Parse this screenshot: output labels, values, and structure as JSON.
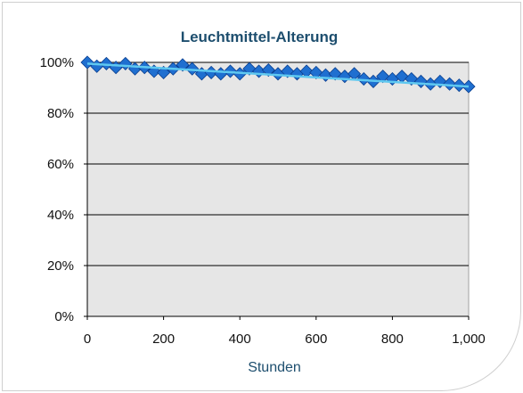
{
  "chart_data": {
    "type": "line",
    "title": "Leuchtmittel-Alterung",
    "xlabel": "Stunden",
    "ylabel": "",
    "xlim": [
      0,
      1000
    ],
    "ylim": [
      0,
      1
    ],
    "x_ticks": [
      0,
      200,
      400,
      600,
      800,
      1000
    ],
    "x_tick_labels": [
      "0",
      "200",
      "400",
      "600",
      "800",
      "1,000"
    ],
    "y_ticks": [
      0,
      0.2,
      0.4,
      0.6,
      0.8,
      1.0
    ],
    "y_tick_labels": [
      "0%",
      "20%",
      "40%",
      "60%",
      "80%",
      "100%"
    ],
    "grid": "horizontal",
    "legend": "none",
    "series": [
      {
        "marker": "diamond",
        "color": "#1f6fd0",
        "x": [
          0,
          25,
          50,
          75,
          100,
          125,
          150,
          175,
          200,
          225,
          250,
          275,
          300,
          325,
          350,
          375,
          400,
          425,
          450,
          475,
          500,
          525,
          550,
          575,
          600,
          625,
          650,
          675,
          700,
          725,
          750,
          775,
          800,
          825,
          850,
          875,
          900,
          925,
          950,
          975,
          1000
        ],
        "y": [
          1.0,
          0.985,
          0.995,
          0.98,
          0.995,
          0.975,
          0.98,
          0.965,
          0.96,
          0.975,
          0.99,
          0.975,
          0.955,
          0.96,
          0.955,
          0.965,
          0.955,
          0.975,
          0.965,
          0.97,
          0.955,
          0.965,
          0.955,
          0.965,
          0.96,
          0.95,
          0.955,
          0.945,
          0.955,
          0.935,
          0.925,
          0.945,
          0.935,
          0.945,
          0.935,
          0.925,
          0.915,
          0.925,
          0.915,
          0.91,
          0.905
        ]
      }
    ],
    "trendline": {
      "color": "#5fc8f0",
      "x": [
        0,
        1000
      ],
      "y": [
        0.995,
        0.905
      ]
    },
    "colors": {
      "plot_background": "#e6e6e6",
      "gridline": "#000000",
      "title": "#1d4e6e"
    }
  }
}
